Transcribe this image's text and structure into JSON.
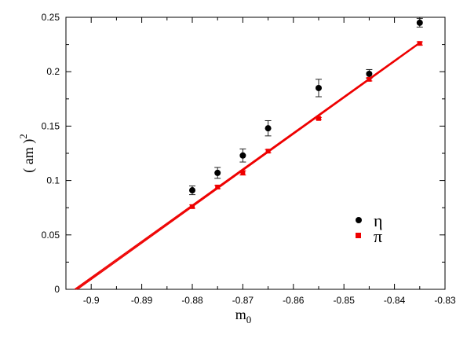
{
  "chart_data": {
    "type": "scatter",
    "xlabel": "m",
    "xlabel_subscript": "0",
    "ylabel": "( am )",
    "ylabel_superscript": "2",
    "xlim": [
      -0.905,
      -0.83
    ],
    "ylim": [
      0,
      0.25
    ],
    "x_ticks": [
      -0.9,
      -0.89,
      -0.88,
      -0.87,
      -0.86,
      -0.85,
      -0.84,
      -0.83
    ],
    "x_tick_labels": [
      "-0.9",
      "-0.89",
      "-0.88",
      "-0.87",
      "-0.86",
      "-0.85",
      "-0.84",
      "-0.83"
    ],
    "y_ticks": [
      0,
      0.05,
      0.1,
      0.15,
      0.2,
      0.25
    ],
    "y_tick_labels": [
      "0",
      "0.05",
      "0.1",
      "0.15",
      "0.2",
      "0.25"
    ],
    "grid": false,
    "legend_position": "lower-right",
    "series": [
      {
        "name": "η",
        "color": "#000000",
        "marker": "circle",
        "x": [
          -0.88,
          -0.875,
          -0.87,
          -0.865,
          -0.855,
          -0.845,
          -0.835
        ],
        "y": [
          0.091,
          0.107,
          0.123,
          0.148,
          0.185,
          0.198,
          0.245
        ],
        "err": [
          0.004,
          0.005,
          0.006,
          0.007,
          0.008,
          0.004,
          0.004
        ]
      },
      {
        "name": "π",
        "color": "#ee0000",
        "marker": "square",
        "x": [
          -0.88,
          -0.875,
          -0.87,
          -0.865,
          -0.855,
          -0.845,
          -0.835
        ],
        "y": [
          0.076,
          0.094,
          0.107,
          0.127,
          0.157,
          0.193,
          0.226
        ],
        "err": [
          0.0015,
          0.0015,
          0.002,
          0.0015,
          0.001,
          0.0015,
          0.0015
        ]
      }
    ],
    "fit_line": {
      "color": "#ee0000",
      "x": [
        -0.903,
        -0.835
      ],
      "y": [
        0.0,
        0.2265
      ]
    }
  }
}
